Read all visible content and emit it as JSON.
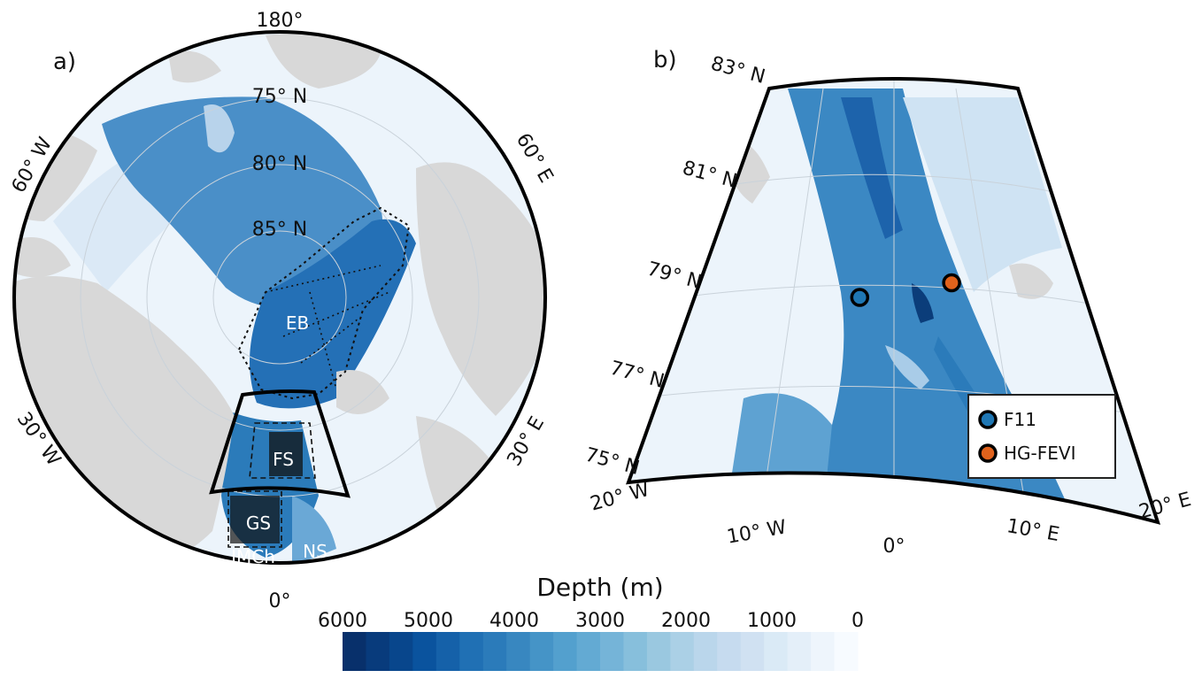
{
  "panel_a": {
    "label": "a)",
    "lon_labels": {
      "top": "180°",
      "bottom": "0°",
      "upper_left": "60° W",
      "lower_left": "30° W",
      "upper_right": "60° E",
      "lower_right": "30° E"
    },
    "lat_labels": [
      "75° N",
      "80° N",
      "85° N"
    ],
    "regions": [
      "EB",
      "FS",
      "GS",
      "JMCh",
      "NS"
    ]
  },
  "panel_b": {
    "label": "b)",
    "lat_labels": [
      "83° N",
      "81° N",
      "79° N",
      "77° N",
      "75° N"
    ],
    "lon_labels": [
      "20° W",
      "10° W",
      "0°",
      "10° E",
      "20° E"
    ],
    "legend": [
      {
        "name": "F11",
        "color": "#1f77b4"
      },
      {
        "name": "HG-FEVI",
        "color": "#e0621c"
      }
    ],
    "stations": [
      {
        "name": "F11",
        "lat": 78.8,
        "lon": -2.5
      },
      {
        "name": "HG-FEVI",
        "lat": 79.1,
        "lon": 4.2
      }
    ]
  },
  "colorbar": {
    "title": "Depth (m)",
    "ticks": [
      "6000",
      "5000",
      "4000",
      "3000",
      "2000",
      "1000",
      "0"
    ],
    "min": 6000,
    "max": 0,
    "colors": [
      "#08306b",
      "#083b7c",
      "#08468c",
      "#0a539e",
      "#1561a9",
      "#2070b4",
      "#2b7bba",
      "#3887c0",
      "#4594c7",
      "#53a0ce",
      "#63aad3",
      "#75b4d8",
      "#87bfdc",
      "#9ac8e0",
      "#abd0e6",
      "#bad6eb",
      "#c6dbef",
      "#d0e1f2",
      "#daeaf6",
      "#e4eff9",
      "#eef5fc",
      "#f7fbff"
    ],
    "land_color": "#d8d8d8"
  }
}
